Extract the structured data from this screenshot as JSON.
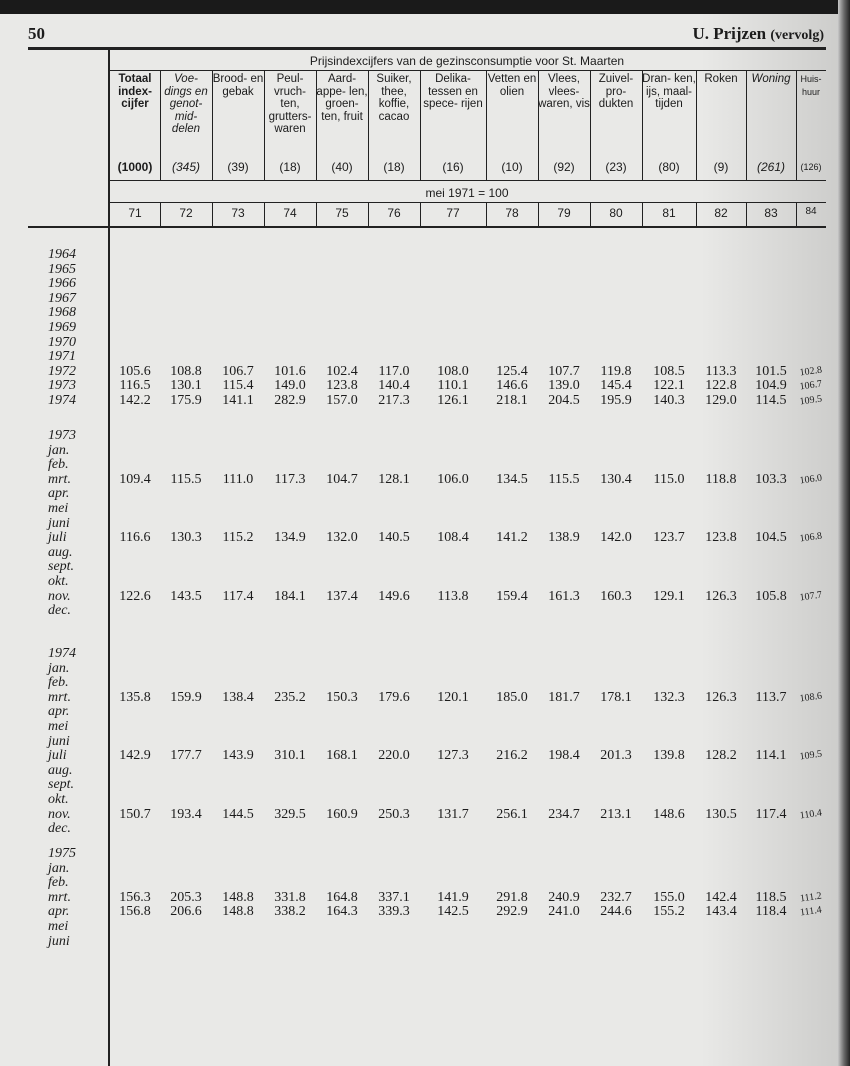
{
  "page_number": "50",
  "section_title": "U. Prijzen",
  "section_suffix": "(vervolg)",
  "table": {
    "title": "Prijsindexcijfers van de gezinsconsumptie voor St. Maarten",
    "base": "mei 1971 = 100",
    "columns": [
      {
        "label": "Totaal index- cijfer",
        "weight": "(1000)",
        "number": "71",
        "style": "bold"
      },
      {
        "label": "Voe- dings en genot- mid- delen",
        "weight": "(345)",
        "number": "72",
        "style": "italic"
      },
      {
        "label": "Brood- en gebak",
        "weight": "(39)",
        "number": "73",
        "style": ""
      },
      {
        "label": "Peul- vruch- ten, grutters- waren",
        "weight": "(18)",
        "number": "74",
        "style": ""
      },
      {
        "label": "Aard- appe- len, groen- ten, fruit",
        "weight": "(40)",
        "number": "75",
        "style": ""
      },
      {
        "label": "Suiker, thee, koffie, cacao",
        "weight": "(18)",
        "number": "76",
        "style": ""
      },
      {
        "label": "Delika- tessen en spece- rijen",
        "weight": "(16)",
        "number": "77",
        "style": ""
      },
      {
        "label": "Vetten en olien",
        "weight": "(10)",
        "number": "78",
        "style": ""
      },
      {
        "label": "Vlees, vlees- waren, vis",
        "weight": "(92)",
        "number": "79",
        "style": ""
      },
      {
        "label": "Zuivel- pro- dukten",
        "weight": "(23)",
        "number": "80",
        "style": ""
      },
      {
        "label": "Dran- ken, ijs, maal- tijden",
        "weight": "(80)",
        "number": "81",
        "style": ""
      },
      {
        "label": "Roken",
        "weight": "(9)",
        "number": "82",
        "style": ""
      },
      {
        "label": "Woning",
        "weight": "(261)",
        "number": "83",
        "style": "italic"
      },
      {
        "label": "Huis- huur",
        "weight": "(126)",
        "number": "84",
        "style": "small"
      }
    ],
    "annual": [
      {
        "label": "1964",
        "values": []
      },
      {
        "label": "1965",
        "values": []
      },
      {
        "label": "1966",
        "values": []
      },
      {
        "label": "1967",
        "values": []
      },
      {
        "label": "1968",
        "values": []
      },
      {
        "label": "1969",
        "values": []
      },
      {
        "label": "1970",
        "values": []
      },
      {
        "label": "1971",
        "values": []
      },
      {
        "label": "1972",
        "values": [
          "105.6",
          "108.8",
          "106.7",
          "101.6",
          "102.4",
          "117.0",
          "108.0",
          "125.4",
          "107.7",
          "119.8",
          "108.5",
          "113.3",
          "101.5",
          "102.8"
        ]
      },
      {
        "label": "1973",
        "values": [
          "116.5",
          "130.1",
          "115.4",
          "149.0",
          "123.8",
          "140.4",
          "110.1",
          "146.6",
          "139.0",
          "145.4",
          "122.1",
          "122.8",
          "104.9",
          "106.7"
        ]
      },
      {
        "label": "1974",
        "values": [
          "142.2",
          "175.9",
          "141.1",
          "282.9",
          "157.0",
          "217.3",
          "126.1",
          "218.1",
          "204.5",
          "195.9",
          "140.3",
          "129.0",
          "114.5",
          "109.5"
        ]
      }
    ],
    "years": [
      {
        "year": "1973",
        "months": [
          {
            "label": "jan.",
            "values": []
          },
          {
            "label": "feb.",
            "values": []
          },
          {
            "label": "mrt.",
            "values": [
              "109.4",
              "115.5",
              "111.0",
              "117.3",
              "104.7",
              "128.1",
              "106.0",
              "134.5",
              "115.5",
              "130.4",
              "115.0",
              "118.8",
              "103.3",
              "106.0"
            ]
          },
          {
            "label": "apr.",
            "values": []
          },
          {
            "label": "mei",
            "values": []
          },
          {
            "label": "juni",
            "values": []
          },
          {
            "label": "juli",
            "values": [
              "116.6",
              "130.3",
              "115.2",
              "134.9",
              "132.0",
              "140.5",
              "108.4",
              "141.2",
              "138.9",
              "142.0",
              "123.7",
              "123.8",
              "104.5",
              "106.8"
            ]
          },
          {
            "label": "aug.",
            "values": []
          },
          {
            "label": "sept.",
            "values": []
          },
          {
            "label": "okt.",
            "values": []
          },
          {
            "label": "nov.",
            "values": [
              "122.6",
              "143.5",
              "117.4",
              "184.1",
              "137.4",
              "149.6",
              "113.8",
              "159.4",
              "161.3",
              "160.3",
              "129.1",
              "126.3",
              "105.8",
              "107.7"
            ]
          },
          {
            "label": "dec.",
            "values": []
          }
        ]
      },
      {
        "year": "1974",
        "months": [
          {
            "label": "jan.",
            "values": []
          },
          {
            "label": "feb.",
            "values": []
          },
          {
            "label": "mrt.",
            "values": [
              "135.8",
              "159.9",
              "138.4",
              "235.2",
              "150.3",
              "179.6",
              "120.1",
              "185.0",
              "181.7",
              "178.1",
              "132.3",
              "126.3",
              "113.7",
              "108.6"
            ]
          },
          {
            "label": "apr.",
            "values": []
          },
          {
            "label": "mei",
            "values": []
          },
          {
            "label": "juni",
            "values": []
          },
          {
            "label": "juli",
            "values": [
              "142.9",
              "177.7",
              "143.9",
              "310.1",
              "168.1",
              "220.0",
              "127.3",
              "216.2",
              "198.4",
              "201.3",
              "139.8",
              "128.2",
              "114.1",
              "109.5"
            ]
          },
          {
            "label": "aug.",
            "values": []
          },
          {
            "label": "sept.",
            "values": []
          },
          {
            "label": "okt.",
            "values": []
          },
          {
            "label": "nov.",
            "values": [
              "150.7",
              "193.4",
              "144.5",
              "329.5",
              "160.9",
              "250.3",
              "131.7",
              "256.1",
              "234.7",
              "213.1",
              "148.6",
              "130.5",
              "117.4",
              "110.4"
            ]
          },
          {
            "label": "dec.",
            "values": []
          }
        ]
      },
      {
        "year": "1975",
        "months": [
          {
            "label": "jan.",
            "values": []
          },
          {
            "label": "feb.",
            "values": []
          },
          {
            "label": "mrt.",
            "values": [
              "156.3",
              "205.3",
              "148.8",
              "331.8",
              "164.8",
              "337.1",
              "141.9",
              "291.8",
              "240.9",
              "232.7",
              "155.0",
              "142.4",
              "118.5",
              "111.2"
            ]
          },
          {
            "label": "apr.",
            "values": [
              "156.8",
              "206.6",
              "148.8",
              "338.2",
              "164.3",
              "339.3",
              "142.5",
              "292.9",
              "241.0",
              "244.6",
              "155.2",
              "143.4",
              "118.4",
              "111.4"
            ]
          },
          {
            "label": "mei",
            "values": []
          },
          {
            "label": "juni",
            "values": []
          }
        ]
      }
    ]
  }
}
